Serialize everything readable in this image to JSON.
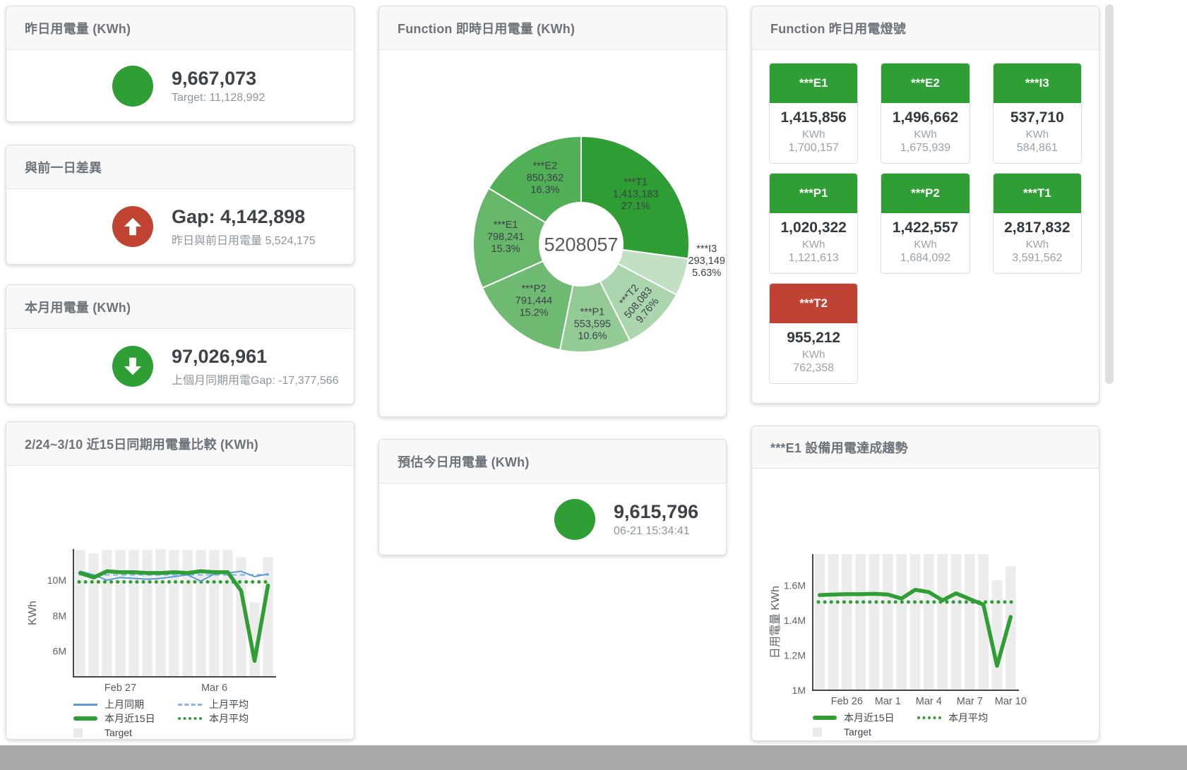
{
  "theme": {
    "green": "#2f9e35",
    "red": "#c14433",
    "blue": "#5b9bd5",
    "blue_light": "#85b7e2",
    "bar_gray": "#ececec",
    "tile_green": "#2f9e35",
    "tile_red": "#bf4232",
    "footer_gray": "#a9a9a9"
  },
  "cards": {
    "yesterday": {
      "title": "昨日用電量 (KWh)",
      "value": "9,667,073",
      "sub": "Target: 11,128,992",
      "indicator": {
        "color": "#2f9e35"
      }
    },
    "day_gap": {
      "title": "與前一日差異",
      "value": "Gap: 4,142,898",
      "sub": "昨日與前日用電量 5,524,175",
      "indicator": {
        "color": "#c14433",
        "arrow": "up"
      }
    },
    "month": {
      "title": "本月用電量 (KWh)",
      "value": "97,026,961",
      "sub": "上個月同期用電Gap: -17,377,566",
      "indicator": {
        "color": "#2f9e35",
        "arrow": "down"
      }
    },
    "estimate": {
      "title": "預估今日用電量 (KWh)",
      "value": "9,615,796",
      "sub": "06-21 15:34:41",
      "indicator": {
        "color": "#2f9e35"
      }
    },
    "realtime": {
      "title": "Function 即時日用電量 (KWh)"
    },
    "lights": {
      "title": "Function 昨日用電燈號",
      "unit": "KWh",
      "tiles": [
        {
          "key": "E1",
          "name": "***E1",
          "value": "1,415,856",
          "target": "1,700,157",
          "status": "green"
        },
        {
          "key": "E2",
          "name": "***E2",
          "value": "1,496,662",
          "target": "1,675,939",
          "status": "green"
        },
        {
          "key": "I3",
          "name": "***I3",
          "value": "537,710",
          "target": "584,861",
          "status": "green"
        },
        {
          "key": "P1",
          "name": "***P1",
          "value": "1,020,322",
          "target": "1,121,613",
          "status": "green"
        },
        {
          "key": "P2",
          "name": "***P2",
          "value": "1,422,557",
          "target": "1,684,092",
          "status": "green"
        },
        {
          "key": "T1",
          "name": "***T1",
          "value": "2,817,832",
          "target": "3,591,562",
          "status": "green"
        },
        {
          "key": "T2",
          "name": "***T2",
          "value": "955,212",
          "target": "762,358",
          "status": "red"
        }
      ]
    },
    "compare": {
      "title": "2/24~3/10 近15日同期用電量比較 (KWh)"
    },
    "e1_trend": {
      "title": "***E1 設備用電達成趨勢"
    }
  },
  "chart_data": [
    {
      "id": "realtime-donut",
      "type": "pie",
      "title": "Function 即時日用電量 (KWh)",
      "center_total": "5208057",
      "slices": [
        {
          "key": "T1",
          "name": "***T1",
          "value": 1413183,
          "pct": "27.1%",
          "color": "#2e9d33"
        },
        {
          "key": "I3",
          "name": "***I3",
          "value": 293149,
          "pct": "5.63%",
          "color": "#c2e1c3"
        },
        {
          "key": "T2",
          "name": "***T2",
          "value": 508083,
          "pct": "9.76%",
          "color": "#abd5ac"
        },
        {
          "key": "P1",
          "name": "***P1",
          "value": 553595,
          "pct": "10.6%",
          "color": "#94ca96"
        },
        {
          "key": "P2",
          "name": "***P2",
          "value": 791444,
          "pct": "15.2%",
          "color": "#70bb73"
        },
        {
          "key": "E1",
          "name": "***E1",
          "value": 798241,
          "pct": "15.3%",
          "color": "#67b76a"
        },
        {
          "key": "E2",
          "name": "***E2",
          "value": 850362,
          "pct": "16.3%",
          "color": "#51af55"
        }
      ]
    },
    {
      "id": "compare",
      "type": "bar+line",
      "title": "2/24~3/10 近15日同期用電量比較 (KWh)",
      "ylabel": "KWh",
      "n": 15,
      "ylim": [
        4.55,
        11.75
      ],
      "yticks": [
        {
          "v": 6,
          "label": "6M"
        },
        {
          "v": 8,
          "label": "8M"
        },
        {
          "v": 10,
          "label": "10M"
        }
      ],
      "xticks": [
        {
          "i": 3,
          "label": "Feb 27"
        },
        {
          "i": 10,
          "label": "Mar 6"
        }
      ],
      "series": [
        {
          "key": "target",
          "name": "Target",
          "type": "bar",
          "color": "#ececec",
          "values": [
            11.7,
            11.5,
            11.7,
            11.7,
            11.7,
            11.7,
            11.75,
            11.7,
            11.7,
            11.7,
            11.7,
            11.7,
            11.3,
            8.75,
            11.3
          ]
        },
        {
          "key": "last-month",
          "name": "上月同期",
          "type": "line",
          "color": "#5b9bd5",
          "values": [
            10.5,
            10.3,
            10.0,
            10.15,
            10.1,
            10.05,
            10.1,
            10.2,
            10.3,
            9.95,
            10.35,
            10.4,
            10.5,
            10.2,
            10.35
          ]
        },
        {
          "key": "last-month-avg",
          "name": "上月平均",
          "type": "avg-dash",
          "color": "#85b7e2",
          "value": 10.3
        },
        {
          "key": "this-month",
          "name": "本月近15日",
          "type": "line-thick",
          "color": "#2f9e35",
          "values": [
            10.4,
            10.15,
            10.5,
            10.45,
            10.45,
            10.4,
            10.4,
            10.45,
            10.4,
            10.5,
            10.45,
            10.45,
            9.4,
            5.45,
            9.7
          ]
        },
        {
          "key": "this-month-avg",
          "name": "本月平均",
          "type": "avg-dot",
          "color": "#2f9e35",
          "value": 9.9
        }
      ]
    },
    {
      "id": "e1-trend",
      "type": "bar+line",
      "title": "***E1 設備用電達成趨勢",
      "ylabel": "日用電量 KWh",
      "n": 15,
      "ylim": [
        1.0,
        1.78
      ],
      "yticks": [
        {
          "v": 1,
          "label": "1M"
        },
        {
          "v": 1.2,
          "label": "1.2M"
        },
        {
          "v": 1.4,
          "label": "1.4M"
        },
        {
          "v": 1.6,
          "label": "1.6M"
        }
      ],
      "xticks": [
        {
          "i": 2,
          "label": "Feb 26"
        },
        {
          "i": 5,
          "label": "Mar 1"
        },
        {
          "i": 8,
          "label": "Mar 4"
        },
        {
          "i": 11,
          "label": "Mar 7"
        },
        {
          "i": 14,
          "label": "Mar 10"
        }
      ],
      "series": [
        {
          "key": "target",
          "name": "Target",
          "type": "bar",
          "color": "#ececec",
          "values": [
            1.78,
            1.78,
            1.78,
            1.78,
            1.78,
            1.78,
            1.78,
            1.78,
            1.78,
            1.78,
            1.78,
            1.78,
            1.78,
            1.63,
            1.71
          ]
        },
        {
          "key": "this-month",
          "name": "本月近15日",
          "type": "line-thick",
          "color": "#2f9e35",
          "values": [
            1.545,
            1.548,
            1.55,
            1.55,
            1.552,
            1.548,
            1.525,
            1.575,
            1.562,
            1.515,
            1.555,
            1.522,
            1.49,
            1.14,
            1.42
          ]
        },
        {
          "key": "this-month-avg",
          "name": "本月平均",
          "type": "avg-dot",
          "color": "#2f9e35",
          "value": 1.505
        }
      ]
    }
  ]
}
